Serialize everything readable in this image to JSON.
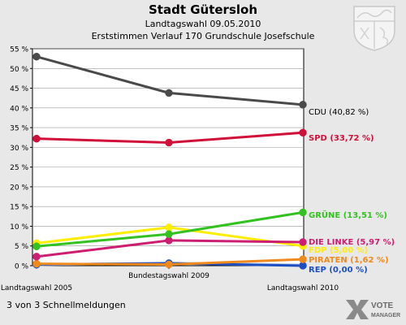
{
  "header": {
    "title": "Stadt Gütersloh",
    "subtitle": "Landtagswahl 09.05.2010",
    "subtitle2": "Erststimmen Verlauf 170 Grundschule Josefschule"
  },
  "footer": {
    "text": "3 von 3 Schnellmeldungen"
  },
  "brand": {
    "line1": "VOTE",
    "line2": "MANAGER"
  },
  "chart_data": {
    "type": "line",
    "title": "Stadt Gütersloh",
    "categories": [
      "Landtagswahl 2005",
      "Bundestagswahl 2009",
      "Landtagswahl 2010"
    ],
    "ylim": [
      0,
      55
    ],
    "yticks": [
      "0 %",
      "5 %",
      "10 %",
      "15 %",
      "20 %",
      "25 %",
      "30 %",
      "35 %",
      "40 %",
      "45 %",
      "50 %",
      "55 %"
    ],
    "grid": true,
    "series": [
      {
        "name": "CDU",
        "label": "CDU (40,82 %)",
        "color": "#4a4a4a",
        "values": [
          53.0,
          43.8,
          40.82
        ]
      },
      {
        "name": "SPD",
        "label": "SPD (33,72 %)",
        "color": "#d0103a",
        "values": [
          32.2,
          31.2,
          33.72
        ]
      },
      {
        "name": "GRÜNE",
        "label": "GRÜNE (13,51 %)",
        "color": "#33c221",
        "values": [
          4.9,
          8.0,
          13.51
        ]
      },
      {
        "name": "DIE LINKE",
        "label": "DIE LINKE (5,97 %)",
        "color": "#cc1f72",
        "values": [
          2.3,
          6.4,
          5.97
        ]
      },
      {
        "name": "FDP",
        "label": "FDP (5,00 %)",
        "color": "#ffee00",
        "values": [
          5.7,
          9.7,
          5.0
        ]
      },
      {
        "name": "PIRATEN",
        "label": "PIRATEN (1,62 %)",
        "color": "#f08a1c",
        "values": [
          0.5,
          0.3,
          1.62
        ]
      },
      {
        "name": "REP",
        "label": "REP (0,00 %)",
        "color": "#1d4fc2",
        "values": [
          0.3,
          0.6,
          0.0
        ]
      },
      {
        "name": "",
        "label": "",
        "color": "#b8c8e8",
        "values": [
          0.2,
          0.7,
          0.2
        ]
      }
    ]
  }
}
